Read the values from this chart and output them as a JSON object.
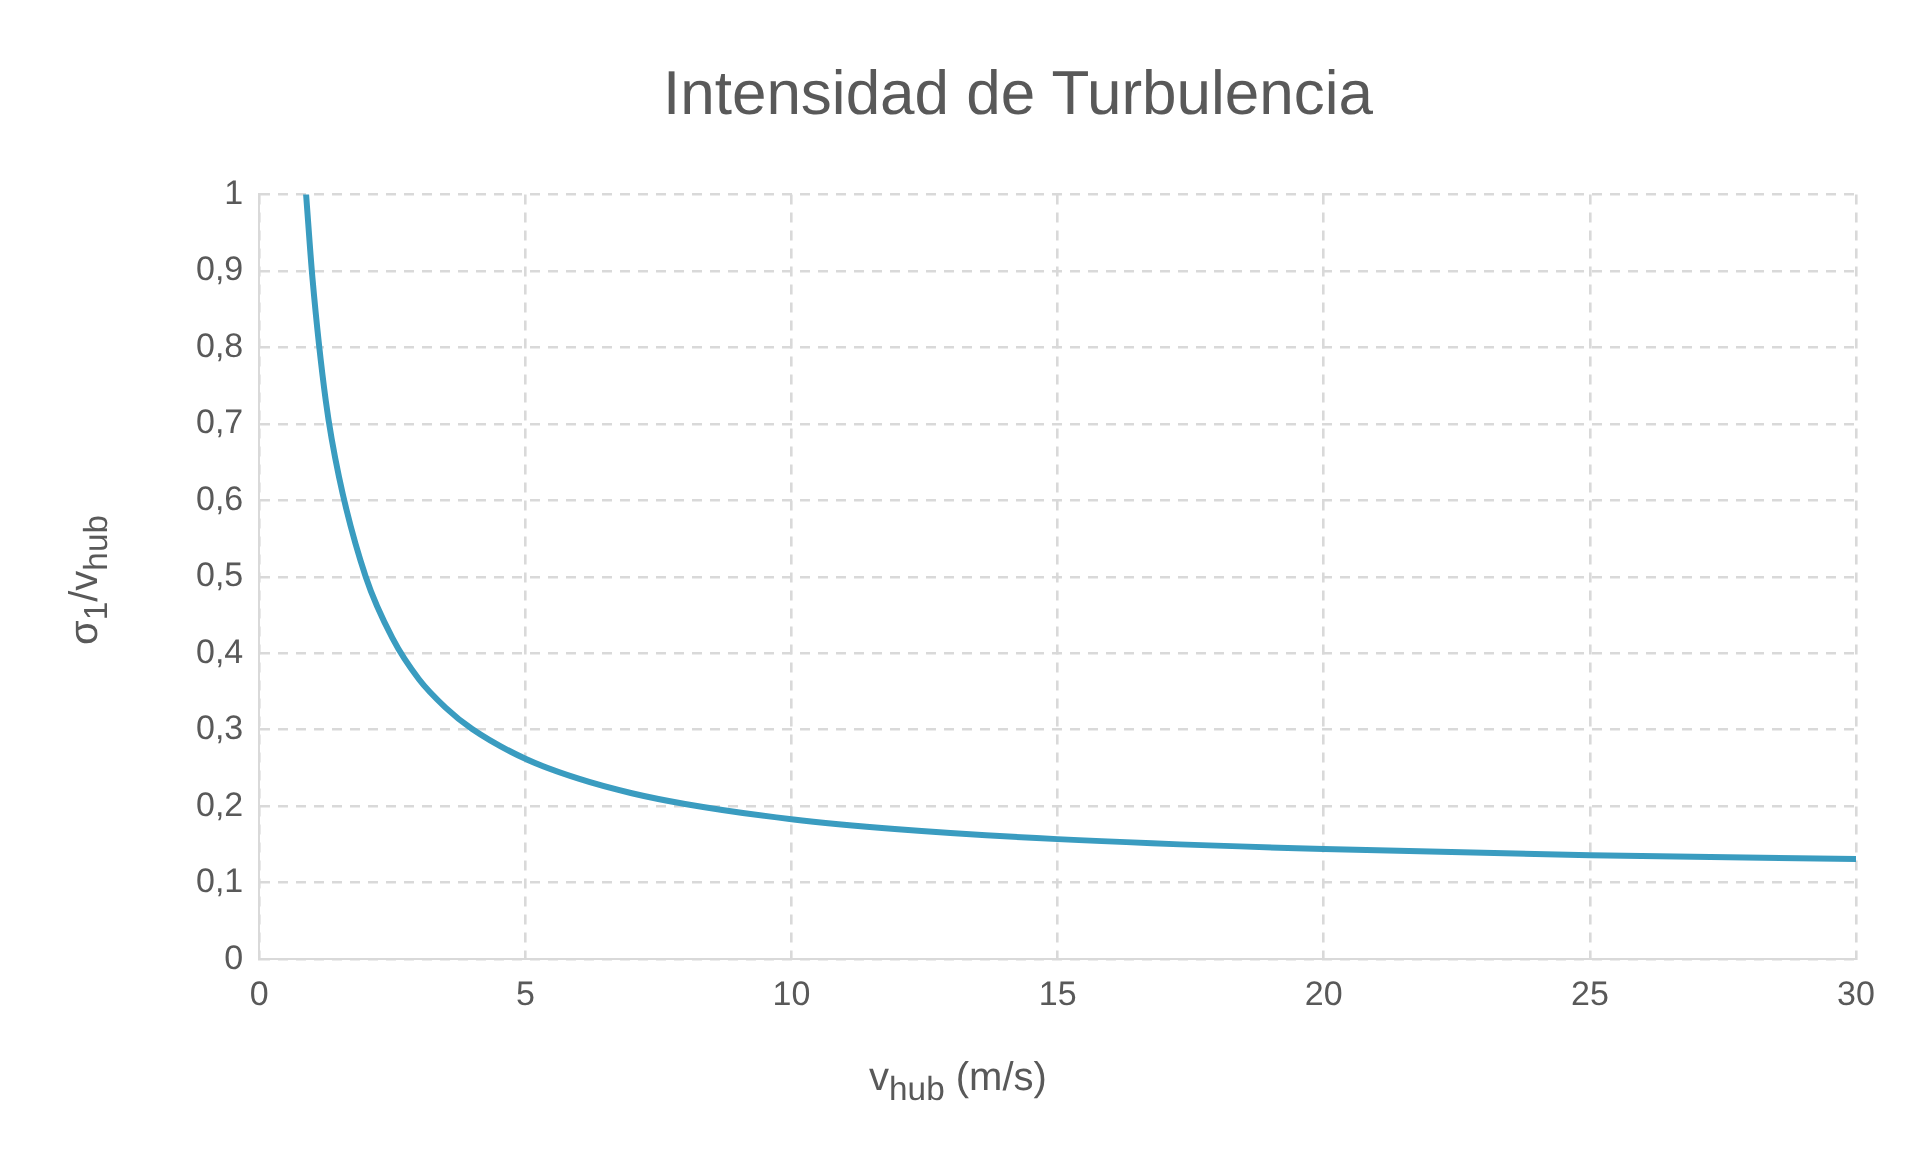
{
  "chart_data": {
    "type": "line",
    "title": "Intensidad de Turbulencia",
    "xlabel": "v$_{hub}$ (m/s)",
    "ylabel": "σ$_{1}$/v$_{hub}$",
    "x": [
      0.88,
      1,
      1.25,
      1.5,
      2,
      2.5,
      3,
      3.5,
      4,
      5,
      6,
      7,
      8,
      10,
      12,
      15,
      20,
      25,
      30
    ],
    "series": [
      {
        "color": "#3a9cc0",
        "values": [
          1.0,
          0.89,
          0.73,
          0.63,
          0.5,
          0.42,
          0.366,
          0.329,
          0.301,
          0.262,
          0.236,
          0.217,
          0.203,
          0.183,
          0.17,
          0.157,
          0.144,
          0.136,
          0.131
        ]
      }
    ],
    "xlim": [
      0,
      30
    ],
    "xticks": [
      0,
      5,
      10,
      15,
      20,
      25,
      30
    ],
    "ylim": [
      0,
      1
    ],
    "yticks": [
      0,
      {
        "value": 0.1,
        "label": "0,1"
      },
      {
        "value": 0.2,
        "label": "0,2"
      },
      {
        "value": 0.3,
        "label": "0,3"
      },
      {
        "value": 0.4,
        "label": "0,4"
      },
      {
        "value": 0.5,
        "label": "0,5"
      },
      {
        "value": 0.6,
        "label": "0,6"
      },
      {
        "value": 0.7,
        "label": "0,7"
      },
      {
        "value": 0.8,
        "label": "0,8"
      },
      {
        "value": 0.9,
        "label": "0,9"
      },
      1
    ],
    "grid": true,
    "legend": false,
    "marker": "none",
    "line_style": "solid"
  }
}
